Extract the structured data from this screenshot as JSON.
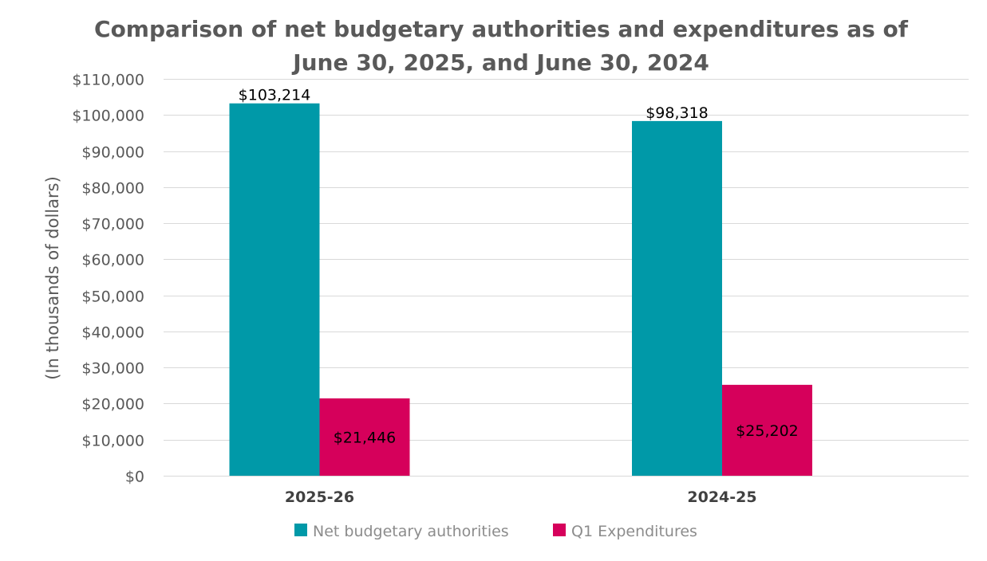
{
  "chart_data": {
    "type": "bar",
    "title": [
      "Comparison of net budgetary authorities and expenditures as of",
      "June 30, 2025, and June 30, 2024"
    ],
    "xlabel": "",
    "ylabel": "(In thousands of dollars)",
    "categories": [
      "2025-26",
      "2024-25"
    ],
    "series": [
      {
        "name": "Net budgetary authorities",
        "color": "#0099a8",
        "values": [
          103214,
          98318
        ],
        "labels": [
          "$103,214",
          "$98,318"
        ]
      },
      {
        "name": "Q1 Expenditures",
        "color": "#d6005b",
        "values": [
          21446,
          25202
        ],
        "labels": [
          "$21,446",
          "$25,202"
        ]
      }
    ],
    "ylim": [
      0,
      110000
    ],
    "yticks": [
      0,
      10000,
      20000,
      30000,
      40000,
      50000,
      60000,
      70000,
      80000,
      90000,
      100000,
      110000
    ],
    "ytick_labels": [
      "$0",
      "$10,000",
      "$20,000",
      "$30,000",
      "$40,000",
      "$50,000",
      "$60,000",
      "$70,000",
      "$80,000",
      "$90,000",
      "$100,000",
      "$110,000"
    ],
    "grid": true,
    "legend_position": "bottom"
  }
}
